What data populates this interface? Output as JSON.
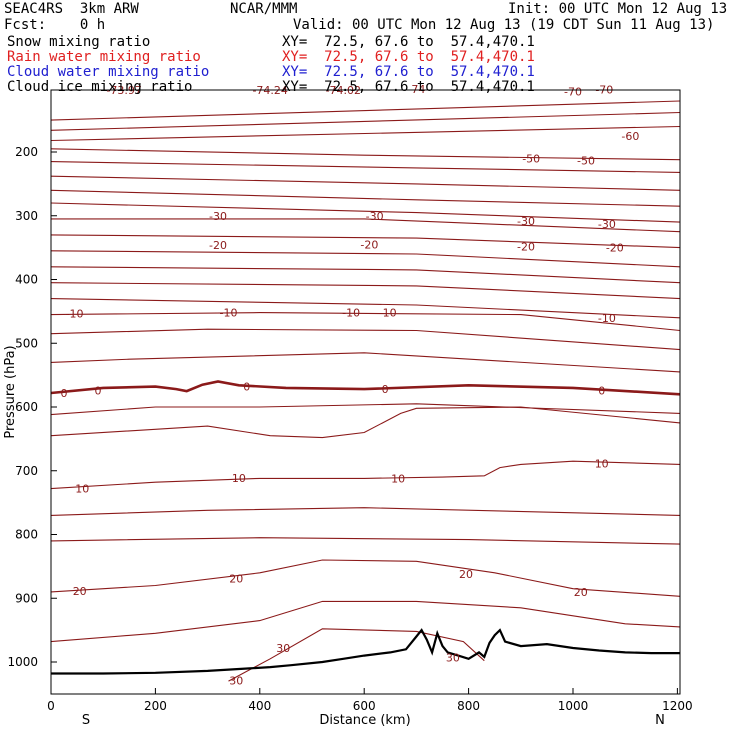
{
  "header": {
    "project": "SEAC4RS  3km ARW",
    "center": "NCAR/MMM",
    "init": "Init: 00 UTC Mon 12 Aug 13",
    "fcst": "Fcst:    0 h",
    "valid": "Valid: 00 UTC Mon 12 Aug 13 (19 CDT Sun 11 Aug 13)"
  },
  "fields": [
    {
      "name": "Snow mixing ratio",
      "xy": "XY=  72.5, 67.6 to  57.4,470.1",
      "color": "#000000"
    },
    {
      "name": "Rain water mixing ratio",
      "xy": "XY=  72.5, 67.6 to  57.4,470.1",
      "color": "#e02020"
    },
    {
      "name": "Cloud water mixing ratio",
      "xy": "XY=  72.5, 67.6 to  57.4,470.1",
      "color": "#2020d0"
    },
    {
      "name": "Cloud ice mixing ratio",
      "xy": "XY=  72.5, 67.6 to  57.4,470.1",
      "color": "#000000"
    }
  ],
  "axes": {
    "xlabel": "Distance (km)",
    "ylabel": "Pressure (hPa)",
    "xticks": [
      "0",
      "200",
      "400",
      "600",
      "800",
      "1000",
      "1200"
    ],
    "yticks": [
      "200",
      "300",
      "400",
      "500",
      "600",
      "700",
      "800",
      "900",
      "1000"
    ],
    "left_end": "S",
    "right_end": "N"
  },
  "contour_labels": [
    {
      "t": "-73.97",
      "x": 140,
      "p": 103
    },
    {
      "t": "-74.24",
      "x": 420,
      "p": 103
    },
    {
      "t": "-74.02",
      "x": 560,
      "p": 103
    },
    {
      "t": "-74",
      "x": 700,
      "p": 101
    },
    {
      "t": "-70",
      "x": 1000,
      "p": 105
    },
    {
      "t": "-70",
      "x": 1060,
      "p": 102
    },
    {
      "t": "-60",
      "x": 1110,
      "p": 175
    },
    {
      "t": "-50",
      "x": 920,
      "p": 210
    },
    {
      "t": "-50",
      "x": 1025,
      "p": 213
    },
    {
      "t": "-30",
      "x": 320,
      "p": 300
    },
    {
      "t": "-30",
      "x": 620,
      "p": 300
    },
    {
      "t": "-30",
      "x": 910,
      "p": 308
    },
    {
      "t": "-30",
      "x": 1065,
      "p": 313
    },
    {
      "t": "-20",
      "x": 320,
      "p": 346
    },
    {
      "t": "-20",
      "x": 610,
      "p": 345
    },
    {
      "t": "-20",
      "x": 910,
      "p": 348
    },
    {
      "t": "-20",
      "x": 1080,
      "p": 350
    },
    {
      "t": "-10",
      "x": 45,
      "p": 453
    },
    {
      "t": "-10",
      "x": 340,
      "p": 452
    },
    {
      "t": "-10",
      "x": 575,
      "p": 452
    },
    {
      "t": "-10",
      "x": 645,
      "p": 452
    },
    {
      "t": "-10",
      "x": 1065,
      "p": 460
    },
    {
      "t": "0",
      "x": 25,
      "p": 578
    },
    {
      "t": "0",
      "x": 90,
      "p": 574
    },
    {
      "t": "0",
      "x": 375,
      "p": 568
    },
    {
      "t": "0",
      "x": 640,
      "p": 572
    },
    {
      "t": "0",
      "x": 1055,
      "p": 574
    },
    {
      "t": "10",
      "x": 60,
      "p": 728
    },
    {
      "t": "10",
      "x": 360,
      "p": 711
    },
    {
      "t": "10",
      "x": 665,
      "p": 712
    },
    {
      "t": "10",
      "x": 1055,
      "p": 689
    },
    {
      "t": "20",
      "x": 55,
      "p": 889
    },
    {
      "t": "20",
      "x": 355,
      "p": 869
    },
    {
      "t": "20",
      "x": 795,
      "p": 862
    },
    {
      "t": "20",
      "x": 1015,
      "p": 890
    },
    {
      "t": "30",
      "x": 445,
      "p": 978
    },
    {
      "t": "30",
      "x": 355,
      "p": 1029
    },
    {
      "t": "30",
      "x": 770,
      "p": 993
    }
  ]
}
